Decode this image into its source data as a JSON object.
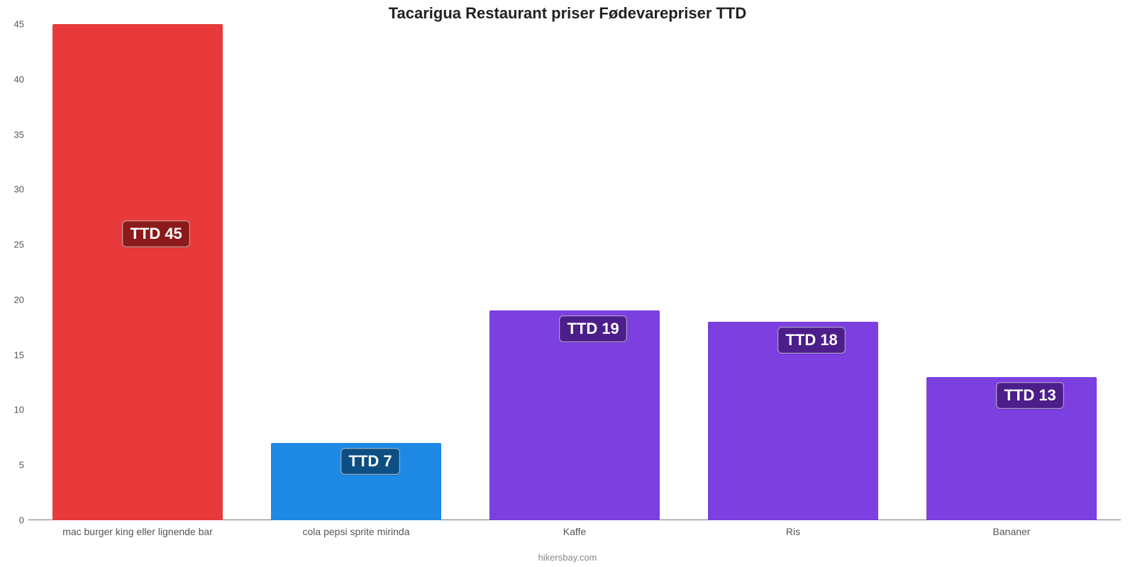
{
  "chart": {
    "type": "bar",
    "title": "Tacarigua Restaurant priser Fødevarepriser TTD",
    "title_fontsize": 22,
    "attribution": "hikersbay.com",
    "attribution_fontsize": 13,
    "background_color": "#ffffff",
    "axis_color": "#777777",
    "tick_label_color": "#555555",
    "x_tick_fontsize": 14,
    "y_tick_fontsize": 13,
    "ylim": [
      0,
      45
    ],
    "ytick_step": 5,
    "yticks": [
      0,
      5,
      10,
      15,
      20,
      25,
      30,
      35,
      40,
      45
    ],
    "bar_width": 0.78,
    "value_label_fontsize": 22,
    "categories": [
      "mac burger king eller lignende bar",
      "cola pepsi sprite mirinda",
      "Kaffe",
      "Ris",
      "Bananer"
    ],
    "values": [
      45,
      7,
      19,
      18,
      13
    ],
    "value_labels": [
      "TTD 45",
      "TTD 7",
      "TTD 19",
      "TTD 18",
      "TTD 13"
    ],
    "bar_colors": [
      "#e83a3a",
      "#1e88e5",
      "#7c3fe0",
      "#7c3fe0",
      "#7c3fe0"
    ],
    "badge_colors": [
      "#8b1a1a",
      "#0d4f82",
      "#4b1e8a",
      "#4b1e8a",
      "#4b1e8a"
    ]
  }
}
